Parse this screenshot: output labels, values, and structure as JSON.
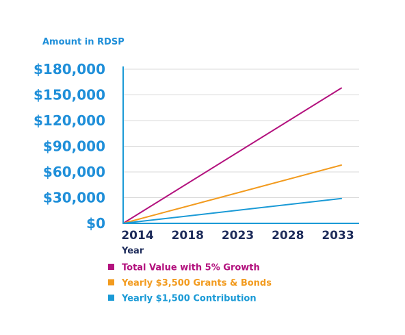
{
  "chart_data": {
    "type": "line",
    "ylabel": "Amount in RDSP",
    "xlabel": "Year",
    "x_ticks": [
      "2014",
      "2018",
      "2023",
      "2028",
      "2033"
    ],
    "x_range": [
      2014,
      2033
    ],
    "y_ticks": [
      "$180,000",
      "$150,000",
      "$120,000",
      "$90,000",
      "$60,000",
      "$30,000",
      "$0"
    ],
    "y_tick_values": [
      180000,
      150000,
      120000,
      90000,
      60000,
      30000,
      0
    ],
    "ylim": [
      0,
      180000
    ],
    "grid": true,
    "legend_position": "bottom-left",
    "series": [
      {
        "name": "Total Value with 5% Growth",
        "color": "#b3127e",
        "x": [
          2014,
          2033
        ],
        "values": [
          0,
          158000
        ]
      },
      {
        "name": "Yearly $3,500 Grants & Bonds",
        "color": "#f29b1f",
        "x": [
          2014,
          2033
        ],
        "values": [
          0,
          68000
        ]
      },
      {
        "name": "Yearly $1,500 Contribution",
        "color": "#1a9ad6",
        "x": [
          2014,
          2033
        ],
        "values": [
          0,
          29000
        ]
      }
    ],
    "colors": {
      "axis_text": "#1f8fd9",
      "x_tick_text": "#1d2b5a",
      "axis_line": "#1a9ad6",
      "grid": "#d8d8d8"
    }
  }
}
